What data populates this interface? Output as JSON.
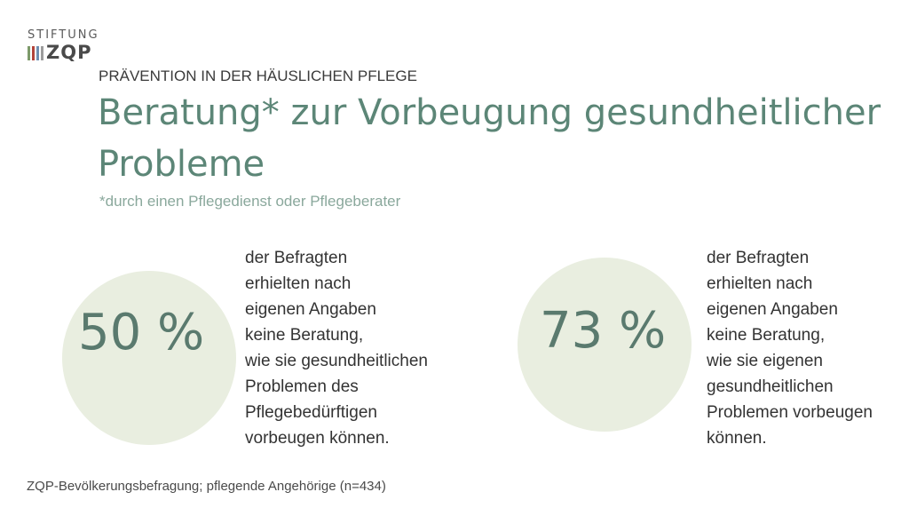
{
  "logo": {
    "top": "STIFTUNG",
    "word": "ZQP",
    "bar_colors": [
      "#7d9a6a",
      "#b3443a",
      "#6f8fb1",
      "#9c9c9c"
    ]
  },
  "kicker": "PRÄVENTION IN DER HÄUSLICHEN PFLEGE",
  "title": "Beratung* zur Vorbeugung gesundheitlicher Probleme",
  "subtitle": "*durch einen Pflegedienst oder Pflegeberater",
  "stats": [
    {
      "percent": "50 %",
      "lines": [
        "der Befragten",
        "erhielten nach",
        "eigenen Angaben",
        "keine Beratung,",
        "wie sie gesundheitlichen",
        "Problemen des",
        "Pflegebedürftigen",
        "vorbeugen können."
      ]
    },
    {
      "percent": "73 %",
      "lines": [
        "der Befragten",
        "erhielten nach",
        "eigenen Angaben",
        "keine Beratung,",
        "wie sie eigenen",
        "gesundheitlichen",
        "Problemen vorbeugen",
        "können."
      ]
    }
  ],
  "source": "ZQP-Bevölkerungsbefragung; pflegende Angehörige (n=434)",
  "colors": {
    "title": "#5c8677",
    "circle": "#e9eee0",
    "percent": "#5a7a6e"
  }
}
